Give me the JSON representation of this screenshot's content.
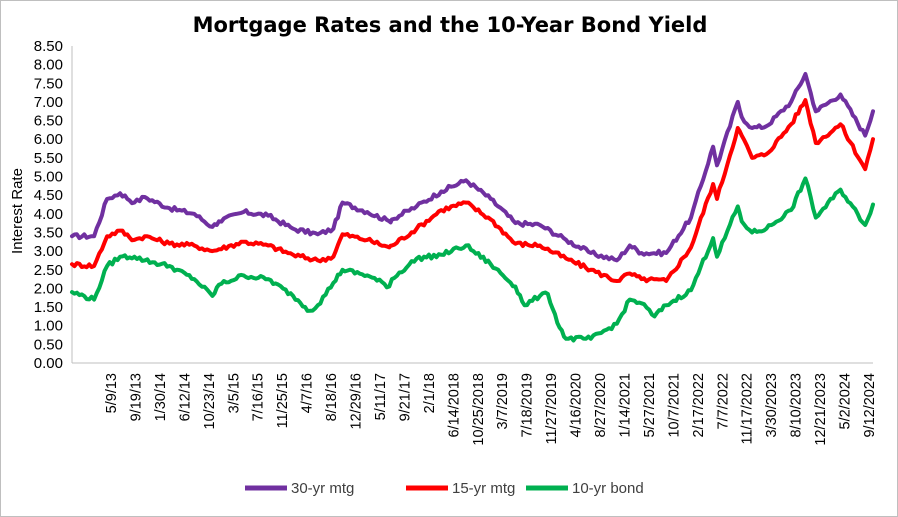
{
  "chart_data": {
    "type": "line",
    "title": "Mortgage Rates and the 10-Year Bond Yield",
    "ylabel": "Interest Rate",
    "xlabel": "",
    "ylim": [
      0,
      8.5
    ],
    "y_ticks": [
      "0.00",
      "0.50",
      "1.00",
      "1.50",
      "2.00",
      "2.50",
      "3.00",
      "3.50",
      "4.00",
      "4.50",
      "5.00",
      "5.50",
      "6.00",
      "6.50",
      "7.00",
      "7.50",
      "8.00",
      "8.50"
    ],
    "x_tick_labels": [
      "5/9/13",
      "9/19/13",
      "1/30/14",
      "6/12/14",
      "10/23/14",
      "3/5/15",
      "7/16/15",
      "11/25/15",
      "4/7/16",
      "8/18/16",
      "12/29/16",
      "5/11/17",
      "9/21/17",
      "2/1/18",
      "6/14/2018",
      "10/25/2018",
      "3/7/2019",
      "7/18/2019",
      "11/27/2019",
      "4/16/2020",
      "8/27/2020",
      "1/14/2021",
      "5/27/2021",
      "10/7/2021",
      "2/17/2022",
      "7/7/2022",
      "11/17/2022",
      "3/30/2023",
      "8/10/2023",
      "12/21/2023",
      "5/2/2024",
      "9/12/2024"
    ],
    "x_range": [
      "2013-01-03",
      "2024-10-24"
    ],
    "grid": false,
    "legend_position": "bottom",
    "series": [
      {
        "name": "30-yr mtg",
        "color": "#7030a0",
        "points": [
          [
            "2013-01-03",
            3.4
          ],
          [
            "2013-05-02",
            3.4
          ],
          [
            "2013-07-11",
            4.4
          ],
          [
            "2013-09-19",
            4.55
          ],
          [
            "2013-12-05",
            4.3
          ],
          [
            "2014-01-30",
            4.45
          ],
          [
            "2014-06-12",
            4.15
          ],
          [
            "2014-10-23",
            4.0
          ],
          [
            "2015-01-29",
            3.65
          ],
          [
            "2015-03-05",
            3.8
          ],
          [
            "2015-07-16",
            4.05
          ],
          [
            "2015-11-25",
            3.95
          ],
          [
            "2016-04-07",
            3.6
          ],
          [
            "2016-08-18",
            3.45
          ],
          [
            "2016-11-10",
            3.6
          ],
          [
            "2016-12-29",
            4.3
          ],
          [
            "2017-05-11",
            4.05
          ],
          [
            "2017-09-07",
            3.8
          ],
          [
            "2017-09-21",
            3.85
          ],
          [
            "2018-02-01",
            4.2
          ],
          [
            "2018-06-14",
            4.6
          ],
          [
            "2018-10-25",
            4.9
          ],
          [
            "2019-03-07",
            4.4
          ],
          [
            "2019-07-18",
            3.75
          ],
          [
            "2019-11-27",
            3.7
          ],
          [
            "2020-04-16",
            3.3
          ],
          [
            "2020-08-27",
            2.95
          ],
          [
            "2021-01-14",
            2.75
          ],
          [
            "2021-03-25",
            3.15
          ],
          [
            "2021-05-27",
            2.95
          ],
          [
            "2021-10-07",
            2.95
          ],
          [
            "2022-02-17",
            3.9
          ],
          [
            "2022-06-16",
            5.8
          ],
          [
            "2022-07-07",
            5.3
          ],
          [
            "2022-10-27",
            7.0
          ],
          [
            "2022-11-17",
            6.6
          ],
          [
            "2023-01-12",
            6.3
          ],
          [
            "2023-03-30",
            6.35
          ],
          [
            "2023-08-10",
            7.0
          ],
          [
            "2023-10-26",
            7.75
          ],
          [
            "2023-12-21",
            6.75
          ],
          [
            "2024-05-02",
            7.2
          ],
          [
            "2024-09-12",
            6.1
          ],
          [
            "2024-10-24",
            6.75
          ]
        ]
      },
      {
        "name": "15-yr mtg",
        "color": "#ff0000",
        "points": [
          [
            "2013-01-03",
            2.65
          ],
          [
            "2013-05-02",
            2.6
          ],
          [
            "2013-07-11",
            3.4
          ],
          [
            "2013-09-19",
            3.55
          ],
          [
            "2013-12-05",
            3.3
          ],
          [
            "2014-01-30",
            3.4
          ],
          [
            "2014-06-12",
            3.2
          ],
          [
            "2014-10-23",
            3.15
          ],
          [
            "2015-01-29",
            3.0
          ],
          [
            "2015-03-05",
            3.05
          ],
          [
            "2015-07-16",
            3.25
          ],
          [
            "2015-11-25",
            3.15
          ],
          [
            "2016-04-07",
            2.9
          ],
          [
            "2016-08-18",
            2.75
          ],
          [
            "2016-11-10",
            2.85
          ],
          [
            "2016-12-29",
            3.45
          ],
          [
            "2017-05-11",
            3.3
          ],
          [
            "2017-09-07",
            3.1
          ],
          [
            "2017-09-21",
            3.15
          ],
          [
            "2018-02-01",
            3.6
          ],
          [
            "2018-06-14",
            4.1
          ],
          [
            "2018-10-25",
            4.3
          ],
          [
            "2019-03-07",
            3.85
          ],
          [
            "2019-07-18",
            3.2
          ],
          [
            "2019-11-27",
            3.15
          ],
          [
            "2020-04-16",
            2.8
          ],
          [
            "2020-08-27",
            2.5
          ],
          [
            "2021-01-14",
            2.2
          ],
          [
            "2021-03-25",
            2.4
          ],
          [
            "2021-05-27",
            2.25
          ],
          [
            "2021-10-07",
            2.2
          ],
          [
            "2022-02-17",
            3.1
          ],
          [
            "2022-06-16",
            4.8
          ],
          [
            "2022-07-07",
            4.4
          ],
          [
            "2022-10-27",
            6.3
          ],
          [
            "2022-11-17",
            6.1
          ],
          [
            "2023-01-12",
            5.5
          ],
          [
            "2023-03-30",
            5.6
          ],
          [
            "2023-08-10",
            6.4
          ],
          [
            "2023-10-26",
            7.05
          ],
          [
            "2023-12-21",
            5.9
          ],
          [
            "2024-05-02",
            6.4
          ],
          [
            "2024-09-12",
            5.2
          ],
          [
            "2024-10-24",
            6.0
          ]
        ]
      },
      {
        "name": "10-yr bond",
        "color": "#00b050",
        "points": [
          [
            "2013-01-03",
            1.9
          ],
          [
            "2013-05-02",
            1.7
          ],
          [
            "2013-07-11",
            2.6
          ],
          [
            "2013-09-19",
            2.85
          ],
          [
            "2013-12-05",
            2.85
          ],
          [
            "2014-01-30",
            2.75
          ],
          [
            "2014-06-12",
            2.6
          ],
          [
            "2014-10-23",
            2.25
          ],
          [
            "2015-01-29",
            1.8
          ],
          [
            "2015-03-05",
            2.1
          ],
          [
            "2015-07-16",
            2.35
          ],
          [
            "2015-11-25",
            2.25
          ],
          [
            "2016-04-07",
            1.8
          ],
          [
            "2016-07-07",
            1.4
          ],
          [
            "2016-08-18",
            1.55
          ],
          [
            "2016-11-10",
            2.15
          ],
          [
            "2016-12-29",
            2.5
          ],
          [
            "2017-05-11",
            2.35
          ],
          [
            "2017-09-07",
            2.05
          ],
          [
            "2017-09-21",
            2.25
          ],
          [
            "2018-02-01",
            2.8
          ],
          [
            "2018-06-14",
            2.9
          ],
          [
            "2018-10-25",
            3.15
          ],
          [
            "2019-03-07",
            2.65
          ],
          [
            "2019-07-18",
            2.05
          ],
          [
            "2019-09-05",
            1.55
          ],
          [
            "2019-11-27",
            1.8
          ],
          [
            "2020-01-09",
            1.85
          ],
          [
            "2020-03-12",
            0.95
          ],
          [
            "2020-04-16",
            0.65
          ],
          [
            "2020-08-27",
            0.65
          ],
          [
            "2021-01-14",
            1.05
          ],
          [
            "2021-03-25",
            1.7
          ],
          [
            "2021-05-27",
            1.6
          ],
          [
            "2021-08-05",
            1.25
          ],
          [
            "2021-10-07",
            1.55
          ],
          [
            "2022-02-17",
            1.95
          ],
          [
            "2022-06-16",
            3.35
          ],
          [
            "2022-07-07",
            2.85
          ],
          [
            "2022-10-27",
            4.2
          ],
          [
            "2022-11-17",
            3.8
          ],
          [
            "2023-01-12",
            3.5
          ],
          [
            "2023-03-30",
            3.6
          ],
          [
            "2023-08-10",
            4.1
          ],
          [
            "2023-10-26",
            4.95
          ],
          [
            "2023-12-21",
            3.9
          ],
          [
            "2024-05-02",
            4.65
          ],
          [
            "2024-09-12",
            3.7
          ],
          [
            "2024-10-24",
            4.25
          ]
        ]
      }
    ]
  }
}
